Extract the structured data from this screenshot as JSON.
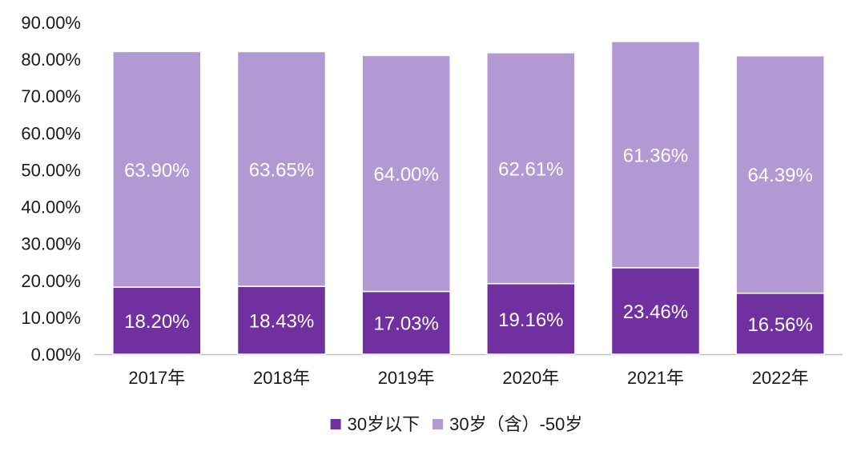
{
  "chart_data": {
    "type": "bar",
    "stacked": true,
    "categories": [
      "2017年",
      "2018年",
      "2019年",
      "2020年",
      "2021年",
      "2022年"
    ],
    "series": [
      {
        "name": "30岁以下",
        "values": [
          18.2,
          18.43,
          17.03,
          19.16,
          23.46,
          16.56
        ],
        "labels": [
          "18.20%",
          "18.43%",
          "17.03%",
          "19.16%",
          "23.46%",
          "16.56%"
        ],
        "color": "#7030a0"
      },
      {
        "name": "30岁（含）-50岁",
        "values": [
          63.9,
          63.65,
          64.0,
          62.61,
          61.36,
          64.39
        ],
        "labels": [
          "63.90%",
          "63.65%",
          "64.00%",
          "62.61%",
          "61.36%",
          "64.39%"
        ],
        "color": "#b399d4"
      }
    ],
    "ylim": [
      0,
      90
    ],
    "yticks": [
      0,
      10,
      20,
      30,
      40,
      50,
      60,
      70,
      80,
      90
    ],
    "ytick_labels": [
      "0.00%",
      "10.00%",
      "20.00%",
      "30.00%",
      "40.00%",
      "50.00%",
      "60.00%",
      "70.00%",
      "80.00%",
      "90.00%"
    ],
    "grid": false,
    "legend_position": "bottom-center",
    "legend_labels": [
      "30岁以下",
      "30岁（含）-50岁"
    ]
  }
}
